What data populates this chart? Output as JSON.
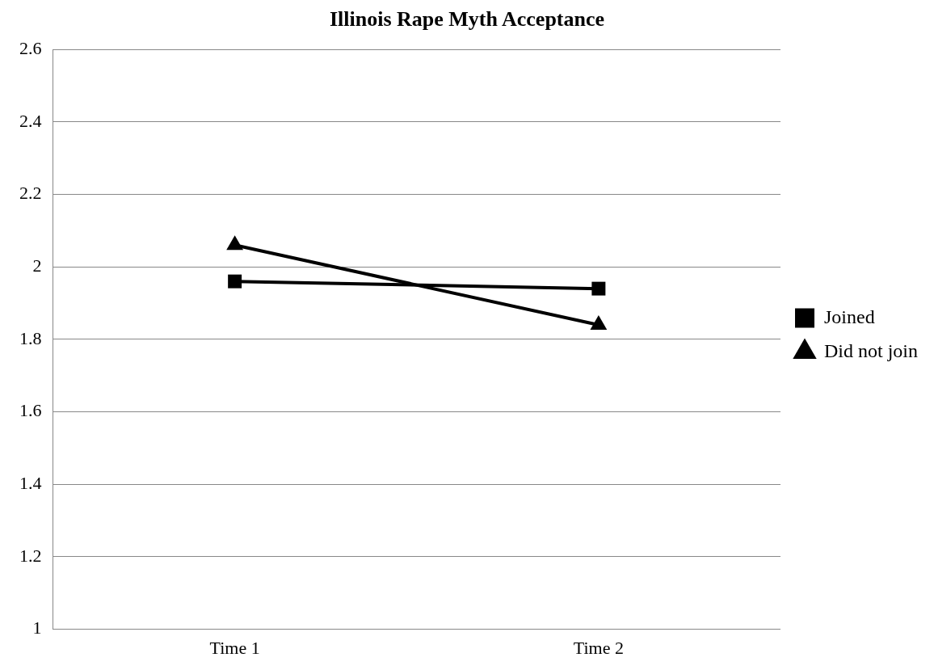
{
  "chart_data": {
    "type": "line",
    "title": "Illinois Rape Myth Acceptance",
    "categories": [
      "Time 1",
      "Time 2"
    ],
    "series": [
      {
        "name": "Joined",
        "color": "#000000",
        "values": [
          1.96,
          1.94
        ],
        "marker": "square"
      },
      {
        "name": "Did not join",
        "color": "#000000",
        "values": [
          2.06,
          1.84
        ],
        "marker": "triangle"
      }
    ],
    "ylim": [
      1,
      2.6
    ],
    "yticks": [
      1,
      1.2,
      1.4,
      1.6,
      1.8,
      2,
      2.2,
      2.4,
      2.6
    ],
    "grid": "y",
    "legend": "right",
    "line_style": "solid"
  }
}
